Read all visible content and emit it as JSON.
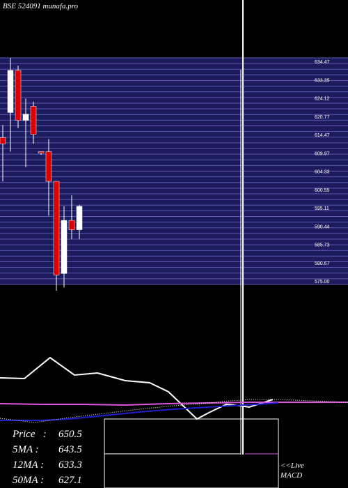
{
  "chart_data": {
    "type": "candlestick",
    "title": "BSE 524091 munafa.pro",
    "price_range": [
      575,
      720
    ],
    "candles": [
      {
        "open": 669,
        "high": 677,
        "low": 641,
        "close": 665
      },
      {
        "open": 685,
        "high": 720,
        "low": 660,
        "close": 712
      },
      {
        "open": 712,
        "high": 715,
        "low": 675,
        "close": 680
      },
      {
        "open": 680,
        "high": 694,
        "low": 650,
        "close": 684
      },
      {
        "open": 689,
        "high": 692,
        "low": 665,
        "close": 671
      },
      {
        "open": 660,
        "high": 660,
        "low": 658,
        "close": 659
      },
      {
        "open": 660,
        "high": 668,
        "low": 619,
        "close": 641
      },
      {
        "open": 641,
        "high": 641,
        "low": 571,
        "close": 581
      },
      {
        "open": 582,
        "high": 625,
        "low": 573,
        "close": 616
      },
      {
        "open": 616,
        "high": 632,
        "low": 604,
        "close": 610
      },
      {
        "open": 610,
        "high": 626,
        "low": 604,
        "close": 625
      }
    ],
    "indicator_line": [
      560,
      560,
      580,
      560,
      555,
      552,
      553,
      545,
      544,
      535,
      527,
      495,
      495,
      480,
      480,
      478,
      486,
      496,
      492,
      500
    ],
    "signal_line": [
      547,
      546,
      545,
      544,
      543,
      542,
      540,
      537,
      534,
      531,
      528,
      525,
      522,
      520,
      518,
      516,
      515,
      514,
      513,
      512
    ]
  },
  "stats": {
    "price_label": "Price   :",
    "price_value": "650.5",
    "ma5_label": "5MA :",
    "ma5_value": "643.5",
    "ma12_label": "12MA :",
    "ma12_value": "633.3",
    "ma50_label": "50MA :",
    "ma50_value": "627.1"
  },
  "labels": {
    "live": "<<Live",
    "macd": "MACD"
  },
  "right_tick_labels": [
    "634.47",
    "633.35",
    "624.12",
    "620.77",
    "614.47",
    "609.97",
    "604.33",
    "600.55",
    "595.11",
    "590.44",
    "585.73",
    "580.67",
    "575.00"
  ],
  "colors": {
    "background": "#000000",
    "panel": "#1b1b5e",
    "grid": "#5a5ab0",
    "up": "#ffffff",
    "down": "#dd0000",
    "wick": "#ffffff",
    "line_white": "#ffffff",
    "ma_blue": "#1f1fcf",
    "ma_pink": "#dd55dd",
    "dotted": "#ffffff"
  }
}
